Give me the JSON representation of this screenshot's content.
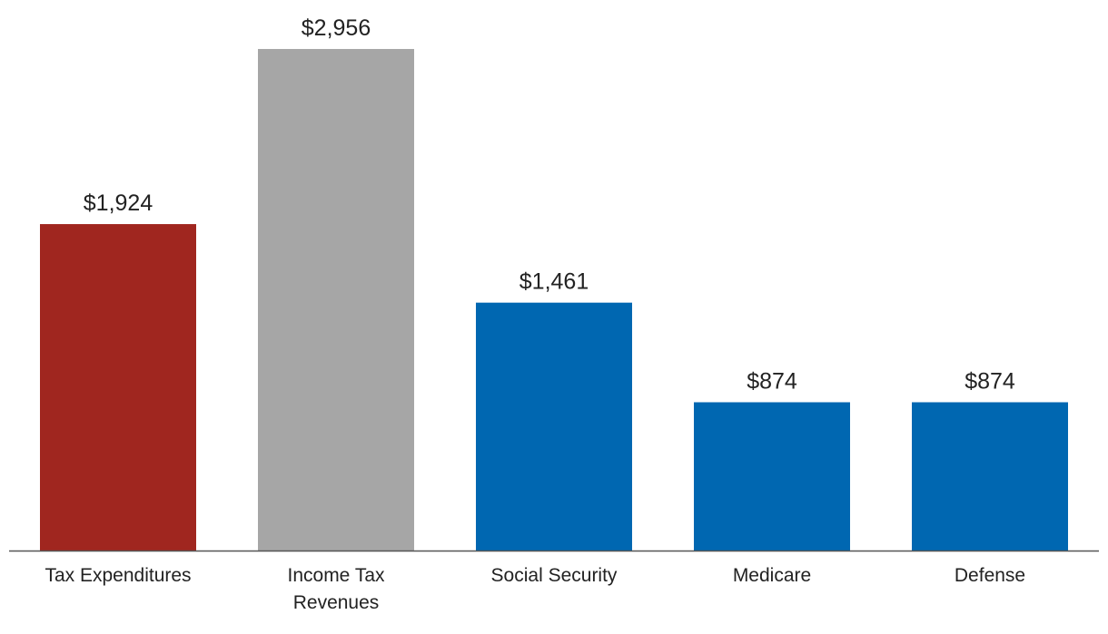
{
  "chart_data": {
    "type": "bar",
    "title": "",
    "xlabel": "",
    "ylabel": "",
    "ylim": [
      0,
      2956
    ],
    "grid": false,
    "legend": "none",
    "categories": [
      [
        "Tax Expenditures"
      ],
      [
        "Income Tax",
        "Revenues"
      ],
      [
        "Social Security"
      ],
      [
        "Medicare"
      ],
      [
        "Defense"
      ]
    ],
    "values": [
      1924,
      2956,
      1461,
      874,
      874
    ],
    "value_labels": [
      "$1,924",
      "$2,956",
      "$1,461",
      "$874",
      "$874"
    ],
    "colors": [
      "#a0261f",
      "#a6a6a6",
      "#0067b1",
      "#0067b1",
      "#0067b1"
    ],
    "axis_color": "#555555"
  }
}
